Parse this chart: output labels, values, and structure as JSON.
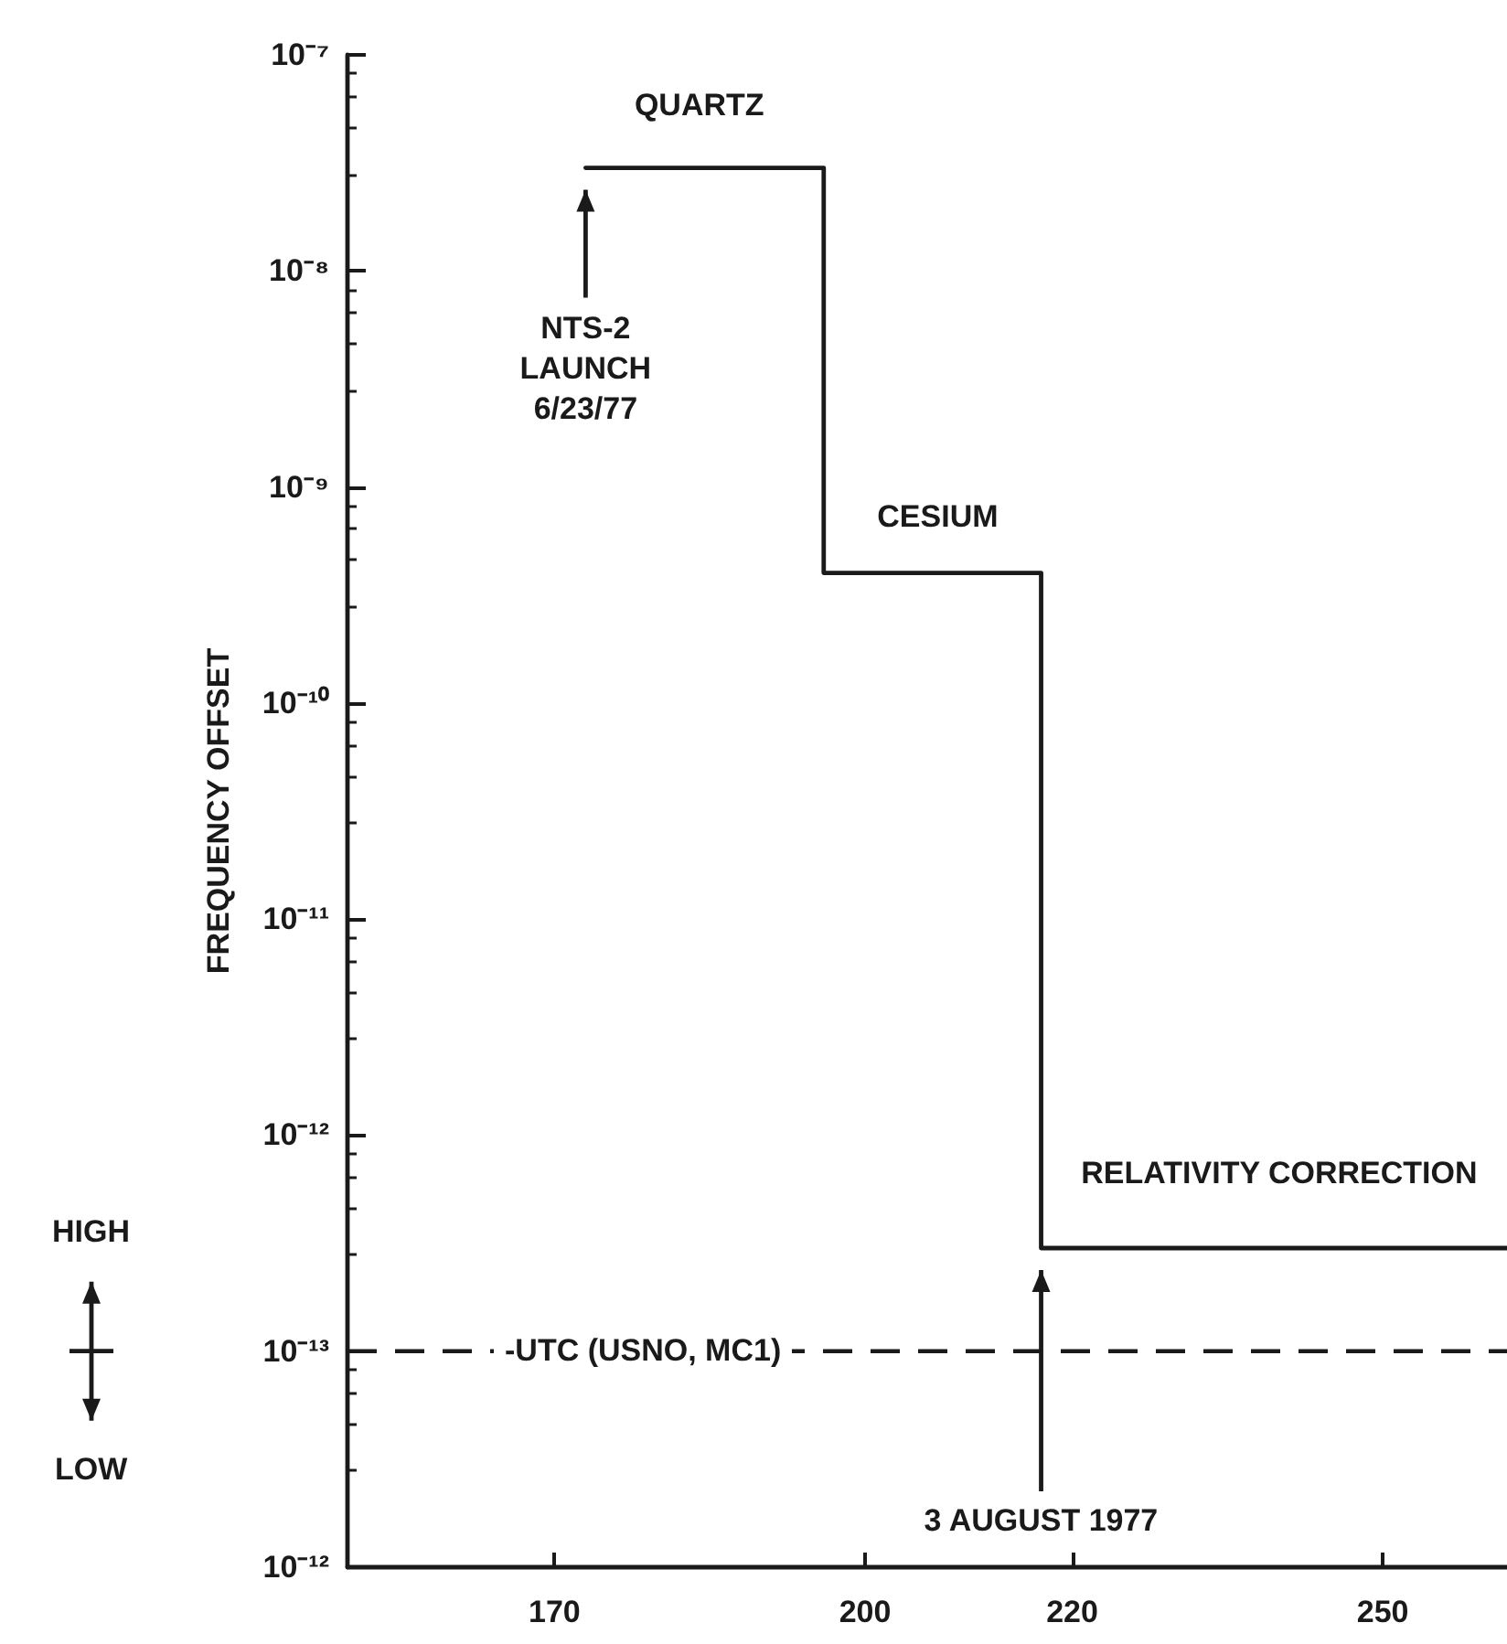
{
  "chart_data": {
    "type": "step",
    "ylabel": "FREQUENCY OFFSET",
    "x": [
      173,
      196,
      217,
      262
    ],
    "series": [
      {
        "color": "#1a1a1a",
        "values": [
          3e-08,
          4e-10,
          3e-13,
          3e-13
        ]
      }
    ],
    "log": "y",
    "xlim": [
      150,
      262
    ],
    "xticks": [
      170,
      200,
      220,
      250
    ],
    "ylim": [
      1e-14,
      1e-07
    ],
    "yticks": [
      {
        "value": 1e-14,
        "label": "10⁻¹²"
      },
      {
        "value": 1e-13,
        "label": "10⁻¹³"
      },
      {
        "value": 1e-12,
        "label": "10⁻¹²"
      },
      {
        "value": 1e-11,
        "label": "10⁻¹¹"
      },
      {
        "value": 1e-10,
        "label": "10⁻¹⁰"
      },
      {
        "value": 1e-09,
        "label": "10⁻⁹"
      },
      {
        "value": 1e-08,
        "label": "10⁻⁸"
      },
      {
        "value": 1e-07,
        "label": "10⁻⁷"
      }
    ],
    "ref_lines": [
      {
        "axis": "y",
        "value": 1e-13,
        "label": "-UTC (USNO, MC1)",
        "line_style": "dashed",
        "color": "#1a1a1a"
      }
    ],
    "annotations": [
      {
        "text": "QUARTZ",
        "x": 184,
        "y": 3e-08
      },
      {
        "text": "CESIUM",
        "x": 207,
        "y": 4e-10
      },
      {
        "text": "RELATIVITY CORRECTION",
        "x": 240,
        "y": 3e-13
      },
      "NTS-2 LAUNCH 6/23/77",
      "3 AUGUST 1977",
      "HIGH",
      "LOW"
    ],
    "grid": false,
    "marker": "none",
    "line_style": "solid"
  }
}
